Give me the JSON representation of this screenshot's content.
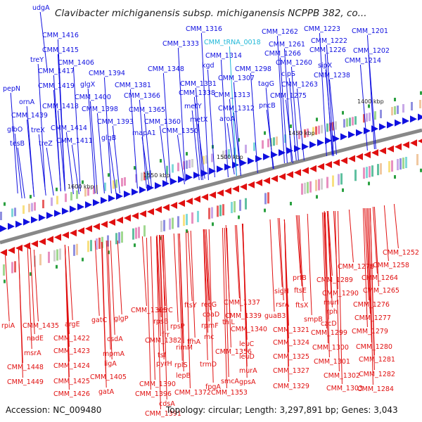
{
  "title": "Clavibacter michiganensis subsp. michiganensis NCPPB 382, co...",
  "footer": {
    "accession": "Accession: NC_009480",
    "topology": "Topology: circular; Length: 3,297,891 bp; Genes: 3,043"
  },
  "colors": {
    "forward": "#1010e0",
    "reverse": "#e01010",
    "trna": "#20b8d8",
    "backbone": "#888888"
  },
  "kbp_labels": [
    "1400 kbp",
    "1450 kbp",
    "1500 kbp",
    "1550 kbp",
    "1600 kbp"
  ],
  "forward_genes": [
    "udgA",
    "CMM_1416",
    "CMM_1415",
    "treY",
    "CMM_1406",
    "CMM_1417",
    "pepN",
    "CMM_1419",
    "ornA",
    "CMM_1418",
    "CMM_1439",
    "treX",
    "CMM_1414",
    "glbO",
    "treZ",
    "CMM_1411",
    "tesB",
    "CMM_1394",
    "glgX",
    "CMM_1400",
    "CMM_1398",
    "CMM_1393",
    "glgB",
    "CMM_1381",
    "CMM_1366",
    "CMM_1365",
    "mapA1",
    "CMM_1360",
    "CMM_1350",
    "CMM_1348",
    "CMM_1333",
    "CMM_1316",
    "CMM_1314",
    "kgd",
    "CMM_1331",
    "CMM_1338",
    "metY",
    "metX",
    "CMM_1307",
    "CMM_1313",
    "aroA",
    "CMM_1312",
    "CMM_1298",
    "tagG",
    "pncB",
    "CMM_1262",
    "CMM_1261",
    "CMM_1266",
    "CMM_1260",
    "CMM_1223",
    "CMM_1222",
    "CMM_1226",
    "sipX",
    "CMM_1201",
    "CMM_1202",
    "CMM_1214",
    "CMM_1238",
    "clpS",
    "CMM_1263",
    "CMM_1275"
  ],
  "trna_genes": [
    "CMM_tRNA_0018"
  ],
  "reverse_genes": [
    "rpiA",
    "CMM_1435",
    "nadE",
    "argE",
    "CMM_1422",
    "msrA",
    "CMM_1423",
    "CMM_1448",
    "CMM_1424",
    "CMM_1449",
    "CMM_1425",
    "CMM_1426",
    "gatC",
    "glgP",
    "csdA",
    "mpmA",
    "ligA",
    "CMM_1405",
    "gatA",
    "CMM_1395",
    "xerC",
    "rpsB",
    "frr",
    "tsf",
    "pyrH",
    "rpsP",
    "rimM",
    "rplS",
    "lepB",
    "CMM_1382",
    "CMM_1390",
    "CMM_1396",
    "cdsA",
    "CMM_1391",
    "ftsY",
    "recG",
    "coaD",
    "rpmF",
    "ffhA",
    "mc",
    "trmD",
    "CMM_1372",
    "smcA",
    "fpgA",
    "CMM_1356",
    "CMM_1353",
    "CMM_1337",
    "CMM_1339",
    "thiL",
    "CMM_1340",
    "leuC",
    "leuD",
    "murA",
    "gpsA",
    "guaB3",
    "sigH",
    "rsrA",
    "CMM_1321",
    "CMM_1324",
    "CMM_1325",
    "CMM_1327",
    "CMM_1329",
    "prfB",
    "ftsE",
    "ftsX",
    "smpB",
    "CMM_1278",
    "CMM_1289",
    "CMM_1290",
    "murI",
    "rph",
    "czcD",
    "CMM_1299",
    "CMM_1300",
    "CMM_1301",
    "CMM_1302",
    "CMM_1303",
    "CMM_1252",
    "CMM_1258",
    "CMM_1264",
    "CMM_1265",
    "CMM_1276",
    "CMM_1277",
    "CMM_1279",
    "CMM_1280",
    "CMM_1281",
    "CMM_1282",
    "CMM_1284"
  ]
}
